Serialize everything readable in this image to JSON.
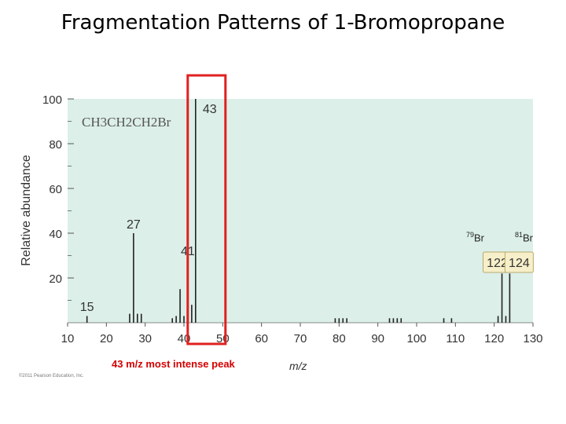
{
  "slide": {
    "title": "Fragmentation Patterns of 1-Bromopropane",
    "callout": "43 m/z most intense peak",
    "copyright": "©2011 Pearson Education, Inc."
  },
  "chart_data": {
    "type": "bar",
    "title": "",
    "xlabel": "m/z",
    "ylabel": "Relative abundance",
    "xlim": [
      10,
      130
    ],
    "ylim": [
      0,
      100
    ],
    "x_ticks": [
      10,
      20,
      30,
      40,
      50,
      60,
      70,
      80,
      90,
      100,
      110,
      120,
      130
    ],
    "y_ticks": [
      20,
      40,
      60,
      80,
      100
    ],
    "grid": false,
    "molecule_label": "CH3CH2CH2Br",
    "isotope_labels": [
      {
        "mass": "79",
        "symbol": "Br"
      },
      {
        "mass": "81",
        "symbol": "Br"
      }
    ],
    "peaks": [
      {
        "mz": 15,
        "abundance": 3
      },
      {
        "mz": 26,
        "abundance": 4
      },
      {
        "mz": 27,
        "abundance": 40
      },
      {
        "mz": 28,
        "abundance": 4
      },
      {
        "mz": 29,
        "abundance": 4
      },
      {
        "mz": 37,
        "abundance": 2
      },
      {
        "mz": 38,
        "abundance": 3
      },
      {
        "mz": 39,
        "abundance": 15
      },
      {
        "mz": 40,
        "abundance": 3
      },
      {
        "mz": 41,
        "abundance": 28
      },
      {
        "mz": 42,
        "abundance": 8
      },
      {
        "mz": 43,
        "abundance": 100
      },
      {
        "mz": 79,
        "abundance": 2
      },
      {
        "mz": 80,
        "abundance": 2
      },
      {
        "mz": 81,
        "abundance": 2
      },
      {
        "mz": 82,
        "abundance": 2
      },
      {
        "mz": 93,
        "abundance": 2
      },
      {
        "mz": 94,
        "abundance": 2
      },
      {
        "mz": 95,
        "abundance": 2
      },
      {
        "mz": 96,
        "abundance": 2
      },
      {
        "mz": 107,
        "abundance": 2
      },
      {
        "mz": 109,
        "abundance": 2
      },
      {
        "mz": 121,
        "abundance": 3
      },
      {
        "mz": 122,
        "abundance": 22
      },
      {
        "mz": 123,
        "abundance": 3
      },
      {
        "mz": 124,
        "abundance": 22
      }
    ],
    "peak_labels": [
      {
        "mz": 15,
        "text": "15",
        "boxed": false
      },
      {
        "mz": 27,
        "text": "27",
        "boxed": false
      },
      {
        "mz": 41,
        "text": "41",
        "boxed": false
      },
      {
        "mz": 43,
        "text": "43",
        "boxed": false
      },
      {
        "mz": 122,
        "text": "122",
        "boxed": true
      },
      {
        "mz": 124,
        "text": "124",
        "boxed": true
      }
    ],
    "highlight": {
      "mz": 43,
      "color": "#e02020"
    },
    "colors": {
      "plot_bg": "#dcefe9",
      "peak": "#222222",
      "callout_box": "#f7efc9"
    }
  }
}
